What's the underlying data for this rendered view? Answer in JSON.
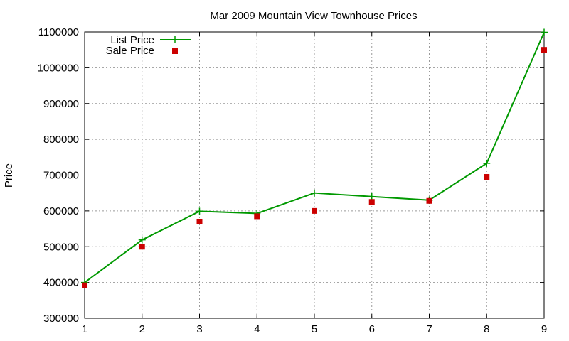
{
  "chart_data": {
    "type": "line",
    "title": "Mar 2009 Mountain View Townhouse Prices",
    "xlabel": "",
    "ylabel": "Price",
    "x": [
      1,
      2,
      3,
      4,
      5,
      6,
      7,
      8,
      9
    ],
    "xlim": [
      1,
      9
    ],
    "ylim": [
      300000,
      1100000
    ],
    "x_ticks": [
      "1",
      "2",
      "3",
      "4",
      "5",
      "6",
      "7",
      "8",
      "9"
    ],
    "y_ticks": [
      "300000",
      "400000",
      "500000",
      "600000",
      "700000",
      "800000",
      "900000",
      "1000000",
      "1100000"
    ],
    "grid": true,
    "legend_placement": "top-left",
    "series": [
      {
        "name": "List Price",
        "style": "lines+crosses",
        "color": "#009900",
        "values": [
          400000,
          519000,
          599000,
          593000,
          650000,
          640000,
          630000,
          733000,
          1099000
        ]
      },
      {
        "name": "Sale Price",
        "style": "squares",
        "color": "#cc0000",
        "values": [
          392000,
          500000,
          570000,
          585000,
          600000,
          625000,
          628000,
          695000,
          1050000
        ]
      }
    ]
  }
}
